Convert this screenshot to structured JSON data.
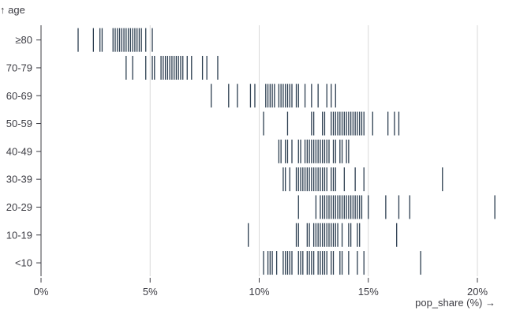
{
  "chart_data": {
    "type": "tickplot",
    "title": "",
    "xlabel": "pop_share (%) →",
    "ylabel": "↑ age",
    "xlim": [
      0,
      21
    ],
    "x_ticks": [
      "0%",
      "5%",
      "10%",
      "15%",
      "20%"
    ],
    "x_tick_values": [
      0,
      5,
      10,
      15,
      20
    ],
    "grid": "vertical",
    "tick_color": "#2c3e50",
    "categories": [
      "≥80",
      "70-79",
      "60-69",
      "50-59",
      "40-49",
      "30-39",
      "20-29",
      "10-19",
      "<10"
    ],
    "series": [
      {
        "name": "≥80",
        "values": [
          1.7,
          2.4,
          2.7,
          2.8,
          3.3,
          3.4,
          3.5,
          3.6,
          3.7,
          3.8,
          3.9,
          4.0,
          4.1,
          4.2,
          4.3,
          4.4,
          4.5,
          4.6,
          4.8,
          5.1
        ]
      },
      {
        "name": "70-79",
        "values": [
          3.9,
          4.2,
          4.8,
          5.1,
          5.2,
          5.5,
          5.6,
          5.7,
          5.8,
          5.9,
          6.0,
          6.1,
          6.2,
          6.3,
          6.4,
          6.5,
          6.7,
          6.9,
          7.4,
          7.6,
          8.1
        ]
      },
      {
        "name": "60-69",
        "values": [
          7.8,
          8.6,
          9.0,
          9.6,
          9.8,
          10.3,
          10.4,
          10.5,
          10.6,
          10.7,
          10.9,
          11.0,
          11.1,
          11.2,
          11.3,
          11.4,
          11.5,
          11.7,
          11.8,
          12.1,
          12.4,
          12.7,
          13.1,
          13.3,
          13.5
        ]
      },
      {
        "name": "50-59",
        "values": [
          10.2,
          11.3,
          12.4,
          12.5,
          12.9,
          13.0,
          13.3,
          13.4,
          13.5,
          13.6,
          13.7,
          13.8,
          13.9,
          14.0,
          14.1,
          14.2,
          14.3,
          14.4,
          14.5,
          14.6,
          14.7,
          14.8,
          15.2,
          15.9,
          16.2,
          16.4
        ]
      },
      {
        "name": "40-49",
        "values": [
          10.9,
          11.0,
          11.2,
          11.3,
          11.5,
          11.8,
          11.9,
          12.1,
          12.2,
          12.3,
          12.4,
          12.5,
          12.6,
          12.7,
          12.8,
          12.9,
          13.0,
          13.1,
          13.2,
          13.4,
          13.5,
          13.7,
          13.8,
          14.0,
          14.1
        ]
      },
      {
        "name": "30-39",
        "values": [
          11.1,
          11.2,
          11.4,
          11.7,
          11.8,
          11.9,
          12.0,
          12.1,
          12.2,
          12.3,
          12.4,
          12.5,
          12.6,
          12.7,
          12.8,
          12.9,
          13.0,
          13.1,
          13.3,
          13.4,
          13.5,
          13.9,
          14.4,
          14.8,
          18.4
        ]
      },
      {
        "name": "20-29",
        "values": [
          11.8,
          12.6,
          12.8,
          12.9,
          13.0,
          13.1,
          13.2,
          13.3,
          13.4,
          13.5,
          13.6,
          13.7,
          13.8,
          13.9,
          14.0,
          14.1,
          14.2,
          14.3,
          14.4,
          14.5,
          14.6,
          14.7,
          15.0,
          15.8,
          16.4,
          16.9,
          20.8
        ]
      },
      {
        "name": "10-19",
        "values": [
          9.5,
          11.7,
          11.8,
          12.2,
          12.3,
          12.5,
          12.6,
          12.7,
          12.8,
          12.9,
          13.0,
          13.1,
          13.2,
          13.3,
          13.4,
          13.5,
          13.6,
          13.8,
          14.1,
          14.2,
          14.5,
          14.6,
          16.3
        ]
      },
      {
        "name": "<10",
        "values": [
          10.2,
          10.4,
          10.5,
          10.6,
          10.8,
          11.1,
          11.2,
          11.3,
          11.4,
          11.5,
          11.8,
          11.9,
          12.0,
          12.2,
          12.3,
          12.4,
          12.5,
          12.7,
          12.8,
          12.9,
          13.0,
          13.1,
          13.3,
          13.4,
          13.7,
          13.8,
          14.1,
          14.5,
          14.8,
          17.4
        ]
      }
    ]
  }
}
